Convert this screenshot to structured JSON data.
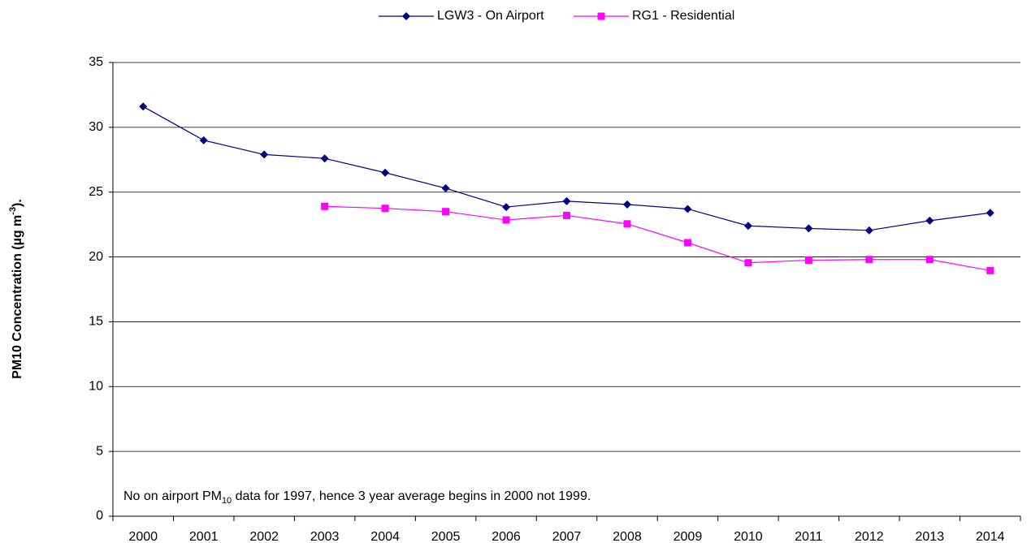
{
  "chart_data": {
    "type": "line",
    "categories": [
      "2000",
      "2001",
      "2002",
      "2003",
      "2004",
      "2005",
      "2006",
      "2007",
      "2008",
      "2009",
      "2010",
      "2011",
      "2012",
      "2013",
      "2014"
    ],
    "series": [
      {
        "name": "LGW3 - On Airport",
        "color": "#000080",
        "marker": "diamond",
        "values": [
          31.6,
          29.0,
          27.9,
          27.6,
          26.5,
          25.3,
          23.85,
          24.3,
          24.05,
          23.7,
          22.4,
          22.2,
          22.05,
          22.8,
          23.4
        ]
      },
      {
        "name": "RG1 - Residential",
        "color": "#ff00ff",
        "marker": "square",
        "values": [
          null,
          null,
          null,
          23.9,
          23.75,
          23.5,
          22.85,
          23.2,
          22.55,
          21.1,
          19.55,
          19.75,
          19.8,
          19.8,
          18.95
        ]
      }
    ],
    "y_label": [
      "PM10 Concentration (µg m",
      "-3",
      ")."
    ],
    "annotation": [
      "No on airport PM",
      "10",
      " data for 1997, hence 3 year average begins in 2000 not 1999."
    ],
    "ylim": [
      0,
      35
    ],
    "yticks": [
      0,
      5,
      10,
      15,
      20,
      25,
      30,
      35
    ],
    "grid": true,
    "legend": "top"
  }
}
